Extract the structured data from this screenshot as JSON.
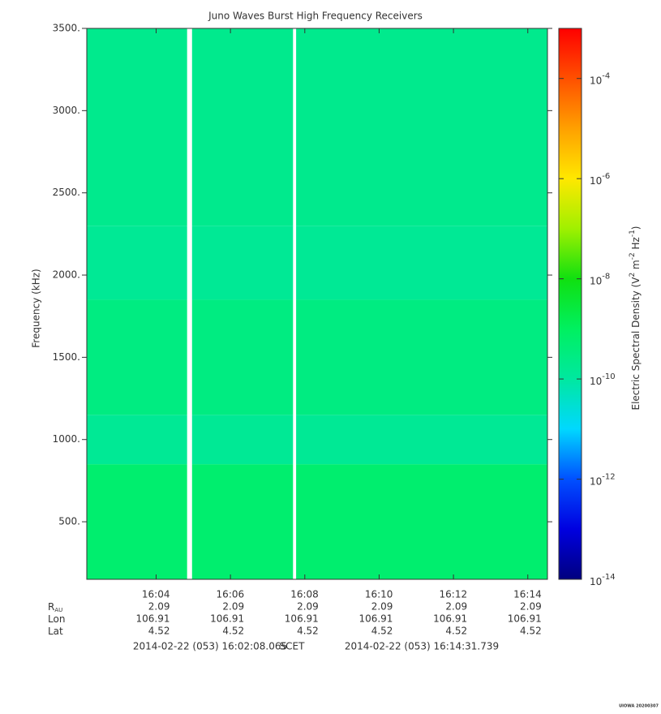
{
  "chart_data": {
    "type": "spectrogram",
    "title": "Juno Waves Burst High Frequency Receivers",
    "ylabel": "Frequency (kHz)",
    "zlabel": [
      "Electric Spectral Density (V",
      "2",
      " m",
      "-2",
      " Hz",
      "-1",
      ")"
    ],
    "x": [
      "16:02:08.065",
      "16:04:50",
      "16:04:58",
      "16:07:41",
      "16:07:46",
      "16:14:31.739"
    ],
    "bins": [
      150,
      850,
      1150,
      1850,
      2300,
      3500
    ],
    "values": [
      [
        6e-10,
        null,
        6e-10,
        null,
        6e-10
      ],
      [
        1.5e-10,
        null,
        1.5e-10,
        null,
        1.5e-10
      ],
      [
        3e-10,
        null,
        3e-10,
        null,
        3e-10
      ],
      [
        1.5e-10,
        null,
        1.5e-10,
        null,
        1.5e-10
      ],
      [
        2e-10,
        null,
        2e-10,
        null,
        2e-10
      ]
    ],
    "xlim": [
      "16:02:08.065",
      "16:14:31.739"
    ],
    "xticks": [
      {
        "value": "16:04:00",
        "label": "16:04"
      },
      {
        "value": "16:06:00",
        "label": "16:06"
      },
      {
        "value": "16:08:00",
        "label": "16:08"
      },
      {
        "value": "16:10:00",
        "label": "16:10"
      },
      {
        "value": "16:12:00",
        "label": "16:12"
      },
      {
        "value": "16:14:00",
        "label": "16:14"
      }
    ],
    "ylim": [
      150,
      3500
    ],
    "yticks": [
      {
        "value": 500,
        "label": "500."
      },
      {
        "value": 1000,
        "label": "1000."
      },
      {
        "value": 1500,
        "label": "1500."
      },
      {
        "value": 2000,
        "label": "2000."
      },
      {
        "value": 2500,
        "label": "2500."
      },
      {
        "value": 3000,
        "label": "3000."
      },
      {
        "value": 3500,
        "label": "3500."
      }
    ],
    "zlim": [
      1e-14,
      0.001
    ],
    "zscale": "log",
    "zticks": [
      {
        "value": 1e-14,
        "label": "10",
        "exponent": "-14"
      },
      {
        "value": 1e-12,
        "label": "10",
        "exponent": "-12"
      },
      {
        "value": 1e-10,
        "label": "10",
        "exponent": "-10"
      },
      {
        "value": 1e-08,
        "label": "10",
        "exponent": "-8"
      },
      {
        "value": 1e-06,
        "label": "10",
        "exponent": "-6"
      },
      {
        "value": 0.0001,
        "label": "10",
        "exponent": "-4"
      }
    ],
    "colormap": [
      "#00007f",
      "#0000e0",
      "#0050ff",
      "#00d8ff",
      "#00e8a0",
      "#00f060",
      "#10e010",
      "#a0f000",
      "#ffe800",
      "#ffa000",
      "#ff5000",
      "#ff0000"
    ],
    "ephemeris": {
      "labels": [
        [
          "R",
          "AU"
        ],
        [
          "Lon"
        ],
        [
          "Lat"
        ]
      ],
      "rows": [
        [
          2.09,
          2.09,
          2.09,
          2.09,
          2.09,
          2.09
        ],
        [
          106.91,
          106.91,
          106.91,
          106.91,
          106.91,
          106.91
        ],
        [
          4.52,
          4.52,
          4.52,
          4.52,
          4.52,
          4.52
        ]
      ]
    },
    "footer": [
      "2014-02-22 (053) 16:02:08.065",
      "SCET",
      "2014-02-22 (053) 16:14:31.739"
    ],
    "stamp": "UIOWA 20200307"
  }
}
